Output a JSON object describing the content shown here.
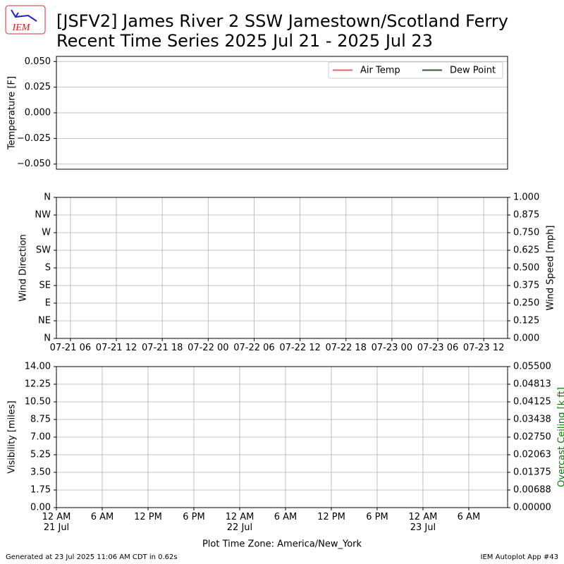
{
  "logo": "IEM",
  "footer": {
    "generated": "Generated at 23 Jul 2025 11:06 AM CDT in 0.62s",
    "app": "IEM Autoplot App #43"
  },
  "chart_data": [
    {
      "type": "line",
      "title": "[JSFV2] James River 2 SSW Jamestown/Scotland Ferry",
      "subtitle": "Recent Time Series 2025 Jul 21 - 2025 Jul 23",
      "ylabel": "Temperature [F]",
      "xlim": [
        "2025-07-21T04:10",
        "2025-07-23T15:07"
      ],
      "ylim": [
        -0.055,
        0.055
      ],
      "yticks": [
        {
          "value": -0.05,
          "label": "−0.050"
        },
        {
          "value": -0.025,
          "label": "−0.025"
        },
        {
          "value": 0,
          "label": "0.000"
        },
        {
          "value": 0.025,
          "label": "0.025"
        },
        {
          "value": 0.05,
          "label": "0.050"
        }
      ],
      "grid": "y",
      "legend": "upper right",
      "series": [
        {
          "name": "Air Temp",
          "color": "#e06666",
          "x": [],
          "values": []
        },
        {
          "name": "Dew Point",
          "color": "#2e5e2e",
          "x": [],
          "values": []
        }
      ]
    },
    {
      "type": "line",
      "ylabel": "Wind Direction",
      "y2label": "Wind Speed [mph]",
      "xlim": [
        "2025-07-21T04:10",
        "2025-07-23T15:07"
      ],
      "xticks": [
        {
          "value": "2025-07-21T06:00",
          "label": "07-21 06"
        },
        {
          "value": "2025-07-21T12:00",
          "label": "07-21 12"
        },
        {
          "value": "2025-07-21T18:00",
          "label": "07-21 18"
        },
        {
          "value": "2025-07-22T00:00",
          "label": "07-22 00"
        },
        {
          "value": "2025-07-22T06:00",
          "label": "07-22 06"
        },
        {
          "value": "2025-07-22T12:00",
          "label": "07-22 12"
        },
        {
          "value": "2025-07-22T18:00",
          "label": "07-22 18"
        },
        {
          "value": "2025-07-23T00:00",
          "label": "07-23 00"
        },
        {
          "value": "2025-07-23T06:00",
          "label": "07-23 06"
        },
        {
          "value": "2025-07-23T12:00",
          "label": "07-23 12"
        }
      ],
      "ylim": [
        0,
        360
      ],
      "yticks": [
        {
          "value": 0,
          "label": "N"
        },
        {
          "value": 45,
          "label": "NE"
        },
        {
          "value": 90,
          "label": "E"
        },
        {
          "value": 135,
          "label": "SE"
        },
        {
          "value": 180,
          "label": "S"
        },
        {
          "value": 225,
          "label": "SW"
        },
        {
          "value": 270,
          "label": "W"
        },
        {
          "value": 315,
          "label": "NW"
        },
        {
          "value": 360,
          "label": "N"
        }
      ],
      "y2lim": [
        0,
        1
      ],
      "y2ticks": [
        {
          "value": 0,
          "label": "0.000"
        },
        {
          "value": 0.125,
          "label": "0.125"
        },
        {
          "value": 0.25,
          "label": "0.250"
        },
        {
          "value": 0.375,
          "label": "0.375"
        },
        {
          "value": 0.5,
          "label": "0.500"
        },
        {
          "value": 0.625,
          "label": "0.625"
        },
        {
          "value": 0.75,
          "label": "0.750"
        },
        {
          "value": 0.875,
          "label": "0.875"
        },
        {
          "value": 1,
          "label": "1.000"
        }
      ],
      "grid": "both"
    },
    {
      "type": "line",
      "ylabel": "Visibility [miles]",
      "y2label": "Overcast Ceiling [k ft]",
      "y2label_color": "#008000",
      "xlabel": "Plot Time Zone: America/New_York",
      "xlim": [
        "2025-07-21T00:00",
        "2025-07-23T11:05"
      ],
      "xticks": [
        {
          "value": "2025-07-21T00:00",
          "label": "12 AM\n21 Jul"
        },
        {
          "value": "2025-07-21T06:00",
          "label": "6 AM"
        },
        {
          "value": "2025-07-21T12:00",
          "label": "12 PM"
        },
        {
          "value": "2025-07-21T18:00",
          "label": "6 PM"
        },
        {
          "value": "2025-07-22T00:00",
          "label": "12 AM\n22 Jul"
        },
        {
          "value": "2025-07-22T06:00",
          "label": "6 AM"
        },
        {
          "value": "2025-07-22T12:00",
          "label": "12 PM"
        },
        {
          "value": "2025-07-22T18:00",
          "label": "6 PM"
        },
        {
          "value": "2025-07-23T00:00",
          "label": "12 AM\n23 Jul"
        },
        {
          "value": "2025-07-23T06:00",
          "label": "6 AM"
        }
      ],
      "ylim": [
        0,
        14
      ],
      "yticks": [
        {
          "value": 0,
          "label": "0.00"
        },
        {
          "value": 1.75,
          "label": "1.75"
        },
        {
          "value": 3.5,
          "label": "3.50"
        },
        {
          "value": 5.25,
          "label": "5.25"
        },
        {
          "value": 7,
          "label": "7.00"
        },
        {
          "value": 8.75,
          "label": "8.75"
        },
        {
          "value": 10.5,
          "label": "10.50"
        },
        {
          "value": 12.25,
          "label": "12.25"
        },
        {
          "value": 14,
          "label": "14.00"
        }
      ],
      "y2lim": [
        0,
        0.055
      ],
      "y2ticks": [
        {
          "value": 0,
          "label": "0.00000"
        },
        {
          "value": 0.006875,
          "label": "0.00688"
        },
        {
          "value": 0.01375,
          "label": "0.01375"
        },
        {
          "value": 0.020625,
          "label": "0.02063"
        },
        {
          "value": 0.0275,
          "label": "0.02750"
        },
        {
          "value": 0.034375,
          "label": "0.03438"
        },
        {
          "value": 0.04125,
          "label": "0.04125"
        },
        {
          "value": 0.048125,
          "label": "0.04813"
        },
        {
          "value": 0.055,
          "label": "0.05500"
        }
      ],
      "grid": "both"
    }
  ]
}
